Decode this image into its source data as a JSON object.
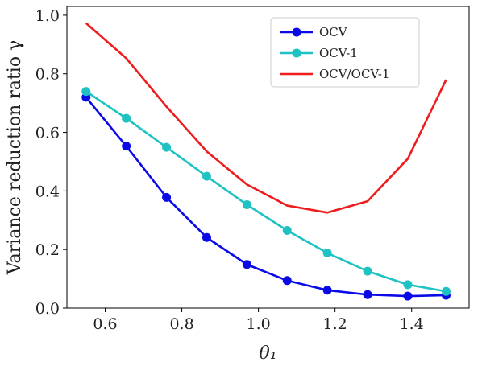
{
  "chart_data": {
    "type": "line",
    "xlabel": "θ₁",
    "ylabel": "Variance reduction ratio γ",
    "xlim": [
      0.5,
      1.55
    ],
    "ylim": [
      0.0,
      1.03
    ],
    "xticks": [
      "0.6",
      "0.8",
      "1.0",
      "1.2",
      "1.4"
    ],
    "yticks": [
      "0.0",
      "0.2",
      "0.4",
      "0.6",
      "0.8",
      "1.0"
    ],
    "grid": false,
    "legend_position": "top-right",
    "x": [
      0.55,
      0.655,
      0.76,
      0.865,
      0.97,
      1.075,
      1.18,
      1.285,
      1.39,
      1.49
    ],
    "series": [
      {
        "name": "OCV",
        "color": "#0a0ae6",
        "marker": "circle",
        "values": [
          0.72,
          0.553,
          0.378,
          0.241,
          0.149,
          0.094,
          0.061,
          0.046,
          0.041,
          0.044
        ]
      },
      {
        "name": "OCV-1",
        "color": "#1fc2c2",
        "marker": "circle",
        "values": [
          0.74,
          0.648,
          0.549,
          0.45,
          0.353,
          0.265,
          0.188,
          0.126,
          0.08,
          0.057
        ]
      },
      {
        "name": "OCV/OCV-1",
        "color": "#ee1c1c",
        "marker": "none",
        "values": [
          0.973,
          0.853,
          0.688,
          0.535,
          0.422,
          0.35,
          0.326,
          0.365,
          0.51,
          0.78
        ]
      }
    ]
  }
}
